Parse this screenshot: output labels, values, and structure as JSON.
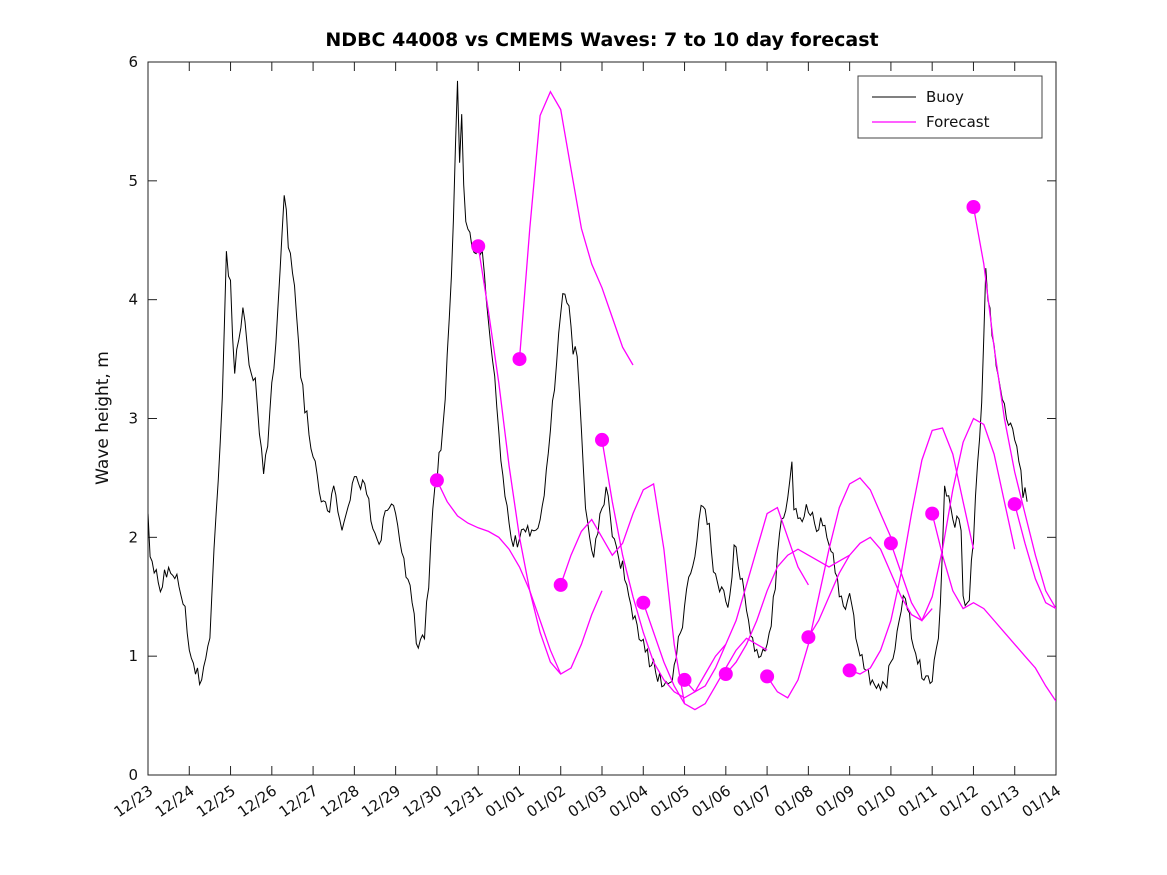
{
  "chart_data": {
    "type": "line",
    "title": "NDBC 44008 vs CMEMS Waves: 7 to 10 day forecast",
    "xlabel": "",
    "ylabel": "Wave height, m",
    "ylim": [
      0,
      6
    ],
    "xlim_days": [
      0,
      22
    ],
    "y_ticks": [
      0,
      1,
      2,
      3,
      4,
      5,
      6
    ],
    "x_tick_labels": [
      "12/23",
      "12/24",
      "12/25",
      "12/26",
      "12/27",
      "12/28",
      "12/29",
      "12/30",
      "12/31",
      "01/01",
      "01/02",
      "01/03",
      "01/04",
      "01/05",
      "01/06",
      "01/07",
      "01/08",
      "01/09",
      "01/10",
      "01/11",
      "01/12",
      "01/13",
      "01/14"
    ],
    "legend": [
      "Buoy",
      "Forecast"
    ],
    "legend_position": "top-right",
    "grid": false,
    "colors": {
      "buoy": "#000000",
      "forecast": "#FF00FF"
    },
    "buoy": {
      "name": "Buoy",
      "noise_amp": 0.07,
      "t": [
        0,
        0.05,
        0.15,
        0.3,
        0.5,
        0.7,
        0.9,
        1.0,
        1.1,
        1.25,
        1.35,
        1.5,
        1.6,
        1.7,
        1.8,
        1.9,
        2.0,
        2.1,
        2.2,
        2.3,
        2.45,
        2.6,
        2.7,
        2.8,
        2.9,
        3.0,
        3.1,
        3.2,
        3.3,
        3.4,
        3.5,
        3.6,
        3.7,
        3.8,
        3.9,
        4.0,
        4.1,
        4.2,
        4.35,
        4.5,
        4.6,
        4.7,
        4.85,
        5.0,
        5.1,
        5.25,
        5.4,
        5.5,
        5.6,
        5.75,
        5.9,
        6.0,
        6.1,
        6.2,
        6.35,
        6.5,
        6.6,
        6.7,
        6.8,
        6.9,
        7.0,
        7.1,
        7.2,
        7.3,
        7.4,
        7.45,
        7.5,
        7.55,
        7.6,
        7.65,
        7.7,
        7.8,
        7.9,
        8.0,
        8.1,
        8.2,
        8.3,
        8.4,
        8.5,
        8.6,
        8.7,
        8.8,
        8.9,
        9.0,
        9.15,
        9.3,
        9.45,
        9.6,
        9.75,
        9.9,
        10.0,
        10.1,
        10.2,
        10.3,
        10.4,
        10.5,
        10.6,
        10.7,
        10.8,
        10.9,
        11.0,
        11.1,
        11.2,
        11.3,
        11.4,
        11.5,
        11.6,
        11.7,
        11.8,
        11.9,
        12.0,
        12.1,
        12.2,
        12.3,
        12.4,
        12.5,
        12.6,
        12.7,
        12.85,
        13.0,
        13.1,
        13.2,
        13.3,
        13.4,
        13.5,
        13.6,
        13.65,
        13.7,
        13.8,
        13.9,
        14.0,
        14.1,
        14.2,
        14.3,
        14.4,
        14.5,
        14.6,
        14.7,
        14.8,
        14.9,
        15.0,
        15.1,
        15.2,
        15.3,
        15.4,
        15.5,
        15.6,
        15.65,
        15.7,
        15.8,
        15.9,
        16.0,
        16.1,
        16.2,
        16.3,
        16.4,
        16.5,
        16.6,
        16.7,
        16.8,
        16.9,
        17.0,
        17.1,
        17.2,
        17.3,
        17.4,
        17.5,
        17.6,
        17.7,
        17.8,
        17.9,
        18.0,
        18.1,
        18.2,
        18.3,
        18.4,
        18.5,
        18.6,
        18.7,
        18.8,
        18.9,
        19.0,
        19.1,
        19.2,
        19.3,
        19.4,
        19.5,
        19.6,
        19.7,
        19.75,
        19.8,
        19.9,
        20.0,
        20.1,
        20.2,
        20.3,
        20.35,
        20.4,
        20.5,
        20.6,
        20.7,
        20.8,
        20.9,
        21.0,
        21.1,
        21.2,
        21.3
      ],
      "y": [
        2.2,
        1.9,
        1.75,
        1.6,
        1.75,
        1.65,
        1.4,
        1.1,
        0.95,
        0.8,
        0.85,
        1.1,
        1.9,
        2.5,
        3.2,
        4.35,
        4.1,
        3.4,
        3.7,
        3.9,
        3.5,
        3.3,
        2.9,
        2.6,
        2.8,
        3.3,
        3.6,
        4.3,
        4.9,
        4.5,
        4.2,
        3.9,
        3.4,
        3.1,
        2.9,
        2.7,
        2.5,
        2.3,
        2.2,
        2.4,
        2.2,
        2.1,
        2.3,
        2.5,
        2.4,
        2.5,
        2.2,
        2.0,
        1.9,
        2.2,
        2.3,
        2.2,
        2.0,
        1.8,
        1.6,
        1.15,
        1.1,
        1.2,
        1.6,
        2.3,
        2.5,
        2.8,
        3.2,
        3.9,
        4.6,
        5.3,
        5.8,
        5.2,
        5.5,
        5.0,
        4.7,
        4.5,
        4.4,
        4.45,
        4.4,
        4.0,
        3.6,
        3.3,
        2.9,
        2.5,
        2.2,
        2.0,
        1.95,
        2.0,
        2.1,
        2.0,
        2.1,
        2.3,
        2.9,
        3.5,
        3.9,
        4.1,
        3.95,
        3.6,
        3.5,
        2.9,
        2.3,
        1.95,
        1.9,
        2.1,
        2.25,
        2.4,
        2.2,
        1.95,
        1.8,
        1.75,
        1.6,
        1.45,
        1.3,
        1.2,
        1.15,
        1.0,
        0.95,
        0.85,
        0.8,
        0.75,
        0.8,
        0.85,
        1.1,
        1.4,
        1.7,
        1.8,
        2.0,
        2.3,
        2.25,
        2.1,
        1.9,
        1.75,
        1.6,
        1.55,
        1.45,
        1.5,
        1.9,
        1.8,
        1.6,
        1.4,
        1.2,
        1.1,
        1.05,
        1.0,
        1.1,
        1.3,
        1.6,
        2.0,
        2.2,
        2.3,
        2.7,
        2.3,
        2.2,
        2.1,
        2.2,
        2.25,
        2.2,
        2.0,
        2.2,
        2.1,
        1.9,
        1.8,
        1.6,
        1.5,
        1.45,
        1.5,
        1.3,
        1.1,
        0.95,
        0.85,
        0.8,
        0.75,
        0.8,
        0.75,
        0.8,
        0.9,
        1.1,
        1.3,
        1.55,
        1.4,
        1.2,
        1.0,
        0.9,
        0.85,
        0.8,
        0.85,
        1.0,
        1.4,
        2.5,
        2.3,
        2.1,
        2.2,
        2.0,
        1.5,
        1.45,
        1.5,
        2.0,
        2.6,
        3.2,
        4.3,
        4.0,
        3.9,
        3.6,
        3.4,
        3.2,
        3.05,
        2.95,
        2.85,
        2.6,
        2.4,
        2.3
      ]
    },
    "forecasts": [
      {
        "start_day": 7,
        "dt_days": 0.25,
        "y": [
          2.48,
          2.3,
          2.18,
          2.12,
          2.08,
          2.05,
          2.0,
          1.9,
          1.75,
          1.55,
          1.3,
          1.05,
          0.85
        ]
      },
      {
        "start_day": 8,
        "dt_days": 0.25,
        "y": [
          4.45,
          3.9,
          3.3,
          2.6,
          2.0,
          1.55,
          1.2,
          0.95,
          0.85,
          0.9,
          1.1,
          1.35,
          1.55
        ]
      },
      {
        "start_day": 9,
        "dt_days": 0.25,
        "y": [
          3.5,
          4.6,
          5.55,
          5.75,
          5.6,
          5.1,
          4.6,
          4.3,
          4.1,
          3.85,
          3.6,
          3.45
        ]
      },
      {
        "start_day": 10,
        "dt_days": 0.25,
        "y": [
          1.6,
          1.85,
          2.05,
          2.15,
          2.0,
          1.85,
          1.95,
          2.2,
          2.4,
          2.45,
          1.9,
          1.1,
          0.6
        ]
      },
      {
        "start_day": 11,
        "dt_days": 0.25,
        "y": [
          2.82,
          2.3,
          1.85,
          1.5,
          1.2,
          0.95,
          0.8,
          0.7,
          0.65,
          0.7,
          0.85,
          1.0,
          1.1
        ]
      },
      {
        "start_day": 12,
        "dt_days": 0.25,
        "y": [
          1.45,
          1.2,
          0.95,
          0.75,
          0.6,
          0.55,
          0.6,
          0.75,
          0.9,
          1.05,
          1.15,
          1.1,
          1.05
        ]
      },
      {
        "start_day": 13,
        "dt_days": 0.25,
        "y": [
          0.8,
          0.7,
          0.75,
          0.9,
          1.1,
          1.3,
          1.6,
          1.9,
          2.2,
          2.25,
          2.0,
          1.75,
          1.6
        ]
      },
      {
        "start_day": 14,
        "dt_days": 0.25,
        "y": [
          0.85,
          0.95,
          1.1,
          1.3,
          1.55,
          1.75,
          1.85,
          1.9,
          1.85,
          1.8,
          1.75,
          1.8,
          1.85
        ]
      },
      {
        "start_day": 15,
        "dt_days": 0.25,
        "y": [
          0.83,
          0.7,
          0.65,
          0.8,
          1.1,
          1.5,
          1.9,
          2.25,
          2.45,
          2.5,
          2.4,
          2.2,
          2.0
        ]
      },
      {
        "start_day": 16,
        "dt_days": 0.25,
        "y": [
          1.16,
          1.3,
          1.5,
          1.7,
          1.85,
          1.95,
          2.0,
          1.9,
          1.7,
          1.5,
          1.35,
          1.3,
          1.4
        ]
      },
      {
        "start_day": 17,
        "dt_days": 0.25,
        "y": [
          0.88,
          0.85,
          0.9,
          1.05,
          1.3,
          1.7,
          2.2,
          2.65,
          2.9,
          2.92,
          2.7,
          2.3,
          1.9
        ]
      },
      {
        "start_day": 18,
        "dt_days": 0.25,
        "y": [
          1.95,
          1.7,
          1.45,
          1.3,
          1.5,
          1.9,
          2.4,
          2.8,
          3.0,
          2.95,
          2.7,
          2.3,
          1.9
        ]
      },
      {
        "start_day": 19,
        "dt_days": 0.25,
        "y": [
          2.2,
          1.85,
          1.55,
          1.4,
          1.45,
          1.4,
          1.3,
          1.2,
          1.1,
          1.0,
          0.9,
          0.75,
          0.62
        ]
      },
      {
        "start_day": 20,
        "dt_days": 0.25,
        "y": [
          4.78,
          4.3,
          3.6,
          3.0,
          2.55,
          2.2,
          1.85,
          1.55,
          1.4
        ]
      },
      {
        "start_day": 21,
        "dt_days": 0.25,
        "y": [
          2.28,
          1.95,
          1.65,
          1.45,
          1.4
        ]
      }
    ]
  }
}
